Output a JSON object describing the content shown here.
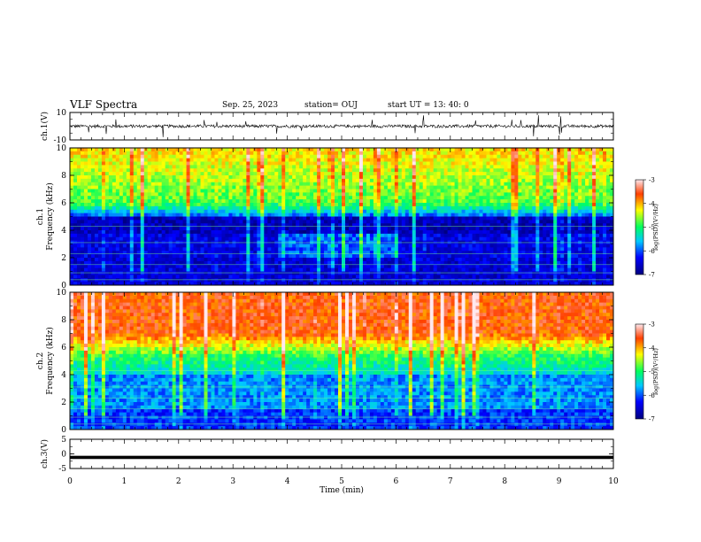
{
  "header": {
    "title": "VLF Spectra",
    "date": "Sep. 25, 2023",
    "station": "station= OUJ",
    "start": "start  UT  =   13: 40: 0"
  },
  "chart_data": [
    {
      "type": "line",
      "panel": "ch1-waveform",
      "ylabel": "ch.1(V)",
      "ylim": [
        -10,
        10
      ],
      "yticks": [
        "10",
        "-10"
      ],
      "xlim": [
        0,
        10
      ],
      "series": [
        {
          "values_summary": "noisy waveform centered near 0 V, amplitude about ±1 V with occasional spikes"
        }
      ]
    },
    {
      "type": "heatmap",
      "panel": "ch1-spectrogram",
      "ylabel": "ch.1\nFrequency (kHz)",
      "ylim": [
        0,
        10
      ],
      "yticks": [
        "0",
        "2",
        "4",
        "6",
        "8",
        "10"
      ],
      "xlim": [
        0,
        10
      ],
      "colorbar": {
        "label": "log(PSD)(V²/Hz)",
        "range": [
          -7,
          -3
        ],
        "ticks": [
          "-3",
          "-4",
          "-5",
          "-6",
          "-7"
        ]
      },
      "features": "high power (yellow/red) above ~6 kHz, low power (blue) below ~5 kHz, intermittent vertical sferic streaks"
    },
    {
      "type": "heatmap",
      "panel": "ch2-spectrogram",
      "ylabel": "ch.2\nFrequency (kHz)",
      "ylim": [
        0,
        10
      ],
      "yticks": [
        "0",
        "2",
        "4",
        "6",
        "8",
        "10"
      ],
      "xlim": [
        0,
        10
      ],
      "colorbar": {
        "label": "log(PSD)(V²/Hz)",
        "range": [
          -7,
          -3
        ],
        "ticks": [
          "-3",
          "-4",
          "-5",
          "-6",
          "-7"
        ]
      },
      "features": "high power (red) above ~7 kHz, green/cyan mid band, dense vertical streaks"
    },
    {
      "type": "line",
      "panel": "ch3-waveform",
      "ylabel": "ch.3(V)",
      "ylim": [
        -5,
        5
      ],
      "yticks": [
        "5",
        "0",
        "-5"
      ],
      "xlim": [
        0,
        10
      ],
      "series": [
        {
          "values_summary": "near-constant line slightly below 0 V"
        }
      ]
    }
  ],
  "xaxis": {
    "label": "Time (min)",
    "ticks": [
      "0",
      "1",
      "2",
      "3",
      "4",
      "5",
      "6",
      "7",
      "8",
      "9",
      "10"
    ]
  }
}
